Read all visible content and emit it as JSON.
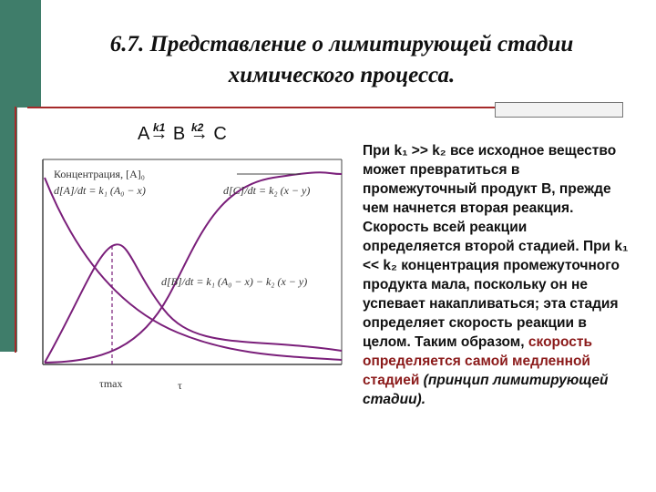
{
  "title": {
    "line1": "6.7. Представление о лимитирующей стадии",
    "line2": "химического процесса."
  },
  "reaction": {
    "scheme": "A→ B → C",
    "k1": "k1",
    "k2": "k2"
  },
  "diagram": {
    "label_concentration": "Концентрация, [A]₀",
    "label_dA": "d[A]/dt = k₁ (A₀ − x)",
    "label_dC": "d[C]/dt = k₂ (x − y)",
    "label_dB": "d[B]/dt = k₁ (A₀ − x) − k₂ (x − y)",
    "label_tmax": "τmax",
    "label_tau": "τ",
    "colors": {
      "curve": "#7a1f7a",
      "axis": "#444444",
      "dashed": "#7a1f7a"
    }
  },
  "body": {
    "p1": "При k₁ >> k₂ все исходное вещество может превратиться в промежуточный продукт B, прежде чем начнется вторая реакция. Скорость всей реакции определяется второй стадией. При k₁ << k₂ концентрация промежуточного продукта мала, поскольку он не успевает накапливаться; эта стадия определяет скорость реакции в целом. Таким образом,",
    "p2_red": "скорость определяется самой медленной стадией",
    "p3_italic": "(принцип лимитирующей стадии)."
  },
  "colors": {
    "accent_green": "#3f7d6a",
    "rule_red": "#a52a2a",
    "highlight_red": "#8b1a1a"
  }
}
